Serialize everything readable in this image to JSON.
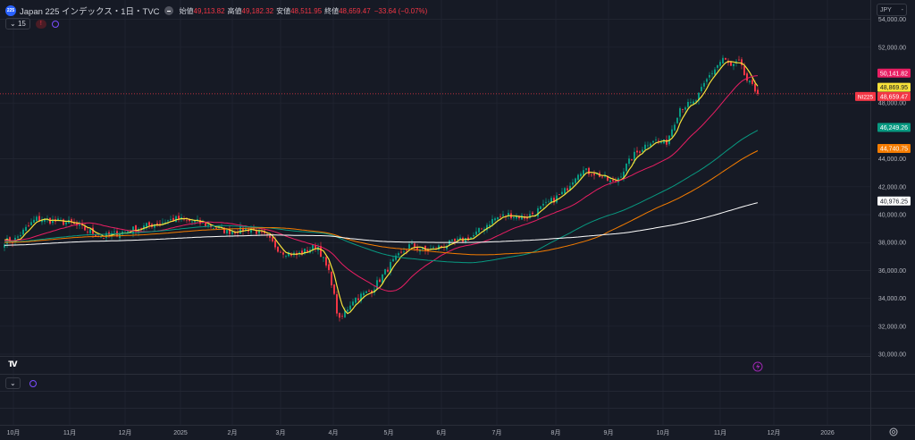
{
  "header": {
    "symbol_logo": "225",
    "title": "Japan 225 インデックス・1日・TVC",
    "open_label": "始値",
    "open": "49,113.82",
    "high_label": "高値",
    "high": "49,182.32",
    "low_label": "安値",
    "low": "48,511.95",
    "close_label": "終値",
    "close": "48,659.47",
    "change": "−33.64 (−0.07%)",
    "indicators_count": "15",
    "alert_glyph": "!"
  },
  "currency": "JPY",
  "colors": {
    "up": "#089981",
    "down": "#f23645",
    "ma_fast": "#f7e13a",
    "ma_25": "#e91e63",
    "ma_75": "#089981",
    "ma_100": "#f57c00",
    "ma_200": "#ffffff"
  },
  "chart_data": {
    "type": "candlestick",
    "symbol_tag": "NI225",
    "ylim": [
      29000,
      55000
    ],
    "y_ticks": [
      "54,000.00",
      "52,000.00",
      "48,000.00",
      "44,000.00",
      "42,000.00",
      "40,000.00",
      "38,000.00",
      "36,000.00",
      "34,000.00",
      "32,000.00",
      "30,000.00"
    ],
    "y_tick_values": [
      54000,
      52000,
      48000,
      44000,
      42000,
      40000,
      38000,
      36000,
      34000,
      32000,
      30000
    ],
    "x_ticks": [
      "10月",
      "11月",
      "12月",
      "2025",
      "2月",
      "3月",
      "4月",
      "5月",
      "6月",
      "7月",
      "8月",
      "9月",
      "10月",
      "11月",
      "12月",
      "2026"
    ],
    "close_path_by_month_index": [
      [
        0,
        38100
      ],
      [
        0.4,
        39700
      ],
      [
        1,
        39400
      ],
      [
        1.6,
        38400
      ],
      [
        2.2,
        39000
      ],
      [
        2.9,
        39700
      ],
      [
        3.4,
        39400
      ],
      [
        3.9,
        38800
      ],
      [
        4.4,
        39000
      ],
      [
        4.7,
        38400
      ],
      [
        5.0,
        37400
      ],
      [
        5.3,
        37100
      ],
      [
        5.7,
        37800
      ],
      [
        5.95,
        35500
      ],
      [
        6.1,
        32300
      ],
      [
        6.35,
        33900
      ],
      [
        6.7,
        34600
      ],
      [
        7.05,
        36500
      ],
      [
        7.4,
        37800
      ],
      [
        7.7,
        37400
      ],
      [
        8.05,
        37800
      ],
      [
        8.55,
        38400
      ],
      [
        8.95,
        39700
      ],
      [
        9.2,
        40000
      ],
      [
        9.5,
        39800
      ],
      [
        9.8,
        40600
      ],
      [
        10.15,
        41600
      ],
      [
        10.45,
        43200
      ],
      [
        10.8,
        42900
      ],
      [
        11.1,
        42200
      ],
      [
        11.45,
        44200
      ],
      [
        11.8,
        45400
      ],
      [
        12.05,
        45100
      ],
      [
        12.3,
        47700
      ],
      [
        12.55,
        48000
      ],
      [
        12.8,
        49900
      ],
      [
        13.05,
        51200
      ],
      [
        13.2,
        50600
      ],
      [
        13.35,
        50900
      ],
      [
        13.5,
        49600
      ],
      [
        13.7,
        48659.47
      ]
    ],
    "last_price": 48659.47,
    "price_labels": [
      {
        "name": "ma-25",
        "text": "50,141.82",
        "value": 50141.82,
        "bg": "#e91e63",
        "fg": "#ffffff"
      },
      {
        "name": "ma-fast",
        "text": "48,869.95",
        "value": 48869.95,
        "bg": "#f7e13a",
        "fg": "#131722"
      },
      {
        "name": "last",
        "text": "48,659.47",
        "value": 48659.47,
        "bg": "#f23645",
        "fg": "#ffffff"
      },
      {
        "name": "ma-75",
        "text": "46,249.26",
        "value": 46249.26,
        "bg": "#089981",
        "fg": "#ffffff"
      },
      {
        "name": "ma-100",
        "text": "44,740.75",
        "value": 44740.75,
        "bg": "#f57c00",
        "fg": "#ffffff"
      },
      {
        "name": "ma-200",
        "text": "40,976.25",
        "value": 40976.25,
        "bg": "#ffffff",
        "fg": "#131722"
      }
    ],
    "moving_averages": [
      {
        "name": "ma-fast",
        "period": 5,
        "color": "#f7e13a"
      },
      {
        "name": "ma-25",
        "period": 25,
        "color": "#e91e63"
      },
      {
        "name": "ma-75",
        "period": 75,
        "color": "#089981"
      },
      {
        "name": "ma-100",
        "period": 100,
        "color": "#f57c00"
      },
      {
        "name": "ma-200",
        "period": 200,
        "color": "#ffffff"
      }
    ]
  },
  "footer": {
    "tv_logo": "TV"
  }
}
